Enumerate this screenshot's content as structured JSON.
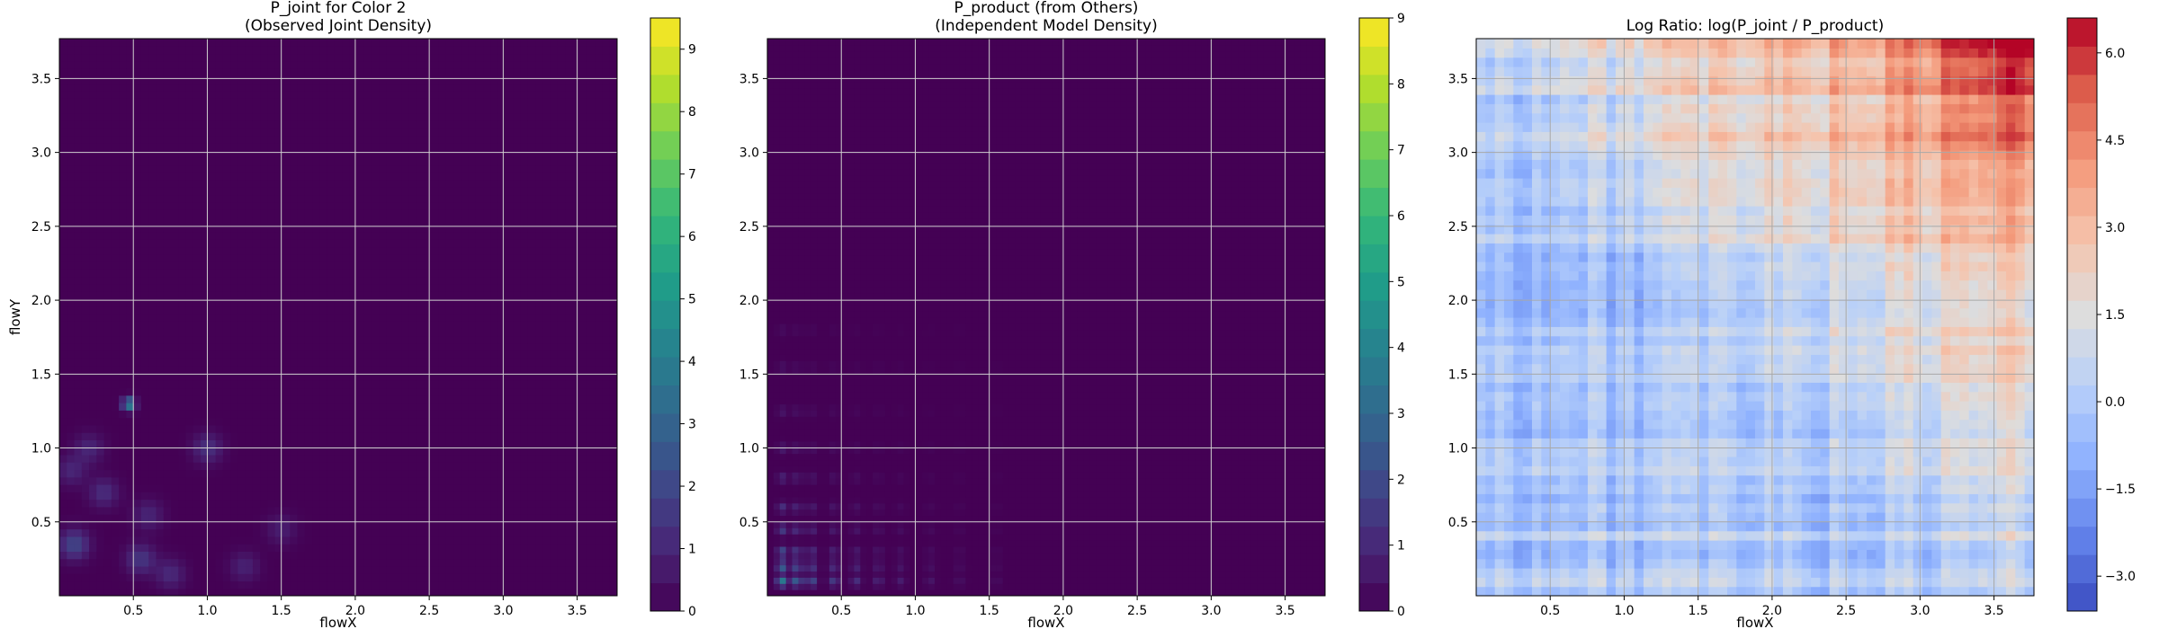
{
  "chart_data": [
    {
      "type": "heatmap",
      "title_line1": "P_joint for Color 2",
      "title_line2": "(Observed Joint Density)",
      "xlabel": "flowX",
      "ylabel": "flowY",
      "xlim": [
        0,
        3.77
      ],
      "ylim": [
        0,
        3.77
      ],
      "xticks": [
        "0.5",
        "1.0",
        "1.5",
        "2.0",
        "2.5",
        "3.0",
        "3.5"
      ],
      "yticks": [
        "0.5",
        "1.0",
        "1.5",
        "2.0",
        "2.5",
        "3.0",
        "3.5"
      ],
      "grid": true,
      "colormap": "viridis",
      "colorbar_range": [
        0,
        9.5
      ],
      "colorbar_ticks": [
        "0",
        "1",
        "2",
        "3",
        "4",
        "5",
        "6",
        "7",
        "8",
        "9"
      ],
      "background_color": "#440154",
      "peaks": [
        {
          "x": 0.47,
          "y": 1.3,
          "value": 4.5
        },
        {
          "x": 0.1,
          "y": 0.35,
          "value": 2.0
        },
        {
          "x": 0.3,
          "y": 0.7,
          "value": 1.2
        },
        {
          "x": 0.55,
          "y": 0.25,
          "value": 1.5
        },
        {
          "x": 1.0,
          "y": 1.0,
          "value": 1.3
        },
        {
          "x": 0.2,
          "y": 1.0,
          "value": 1.0
        },
        {
          "x": 0.75,
          "y": 0.15,
          "value": 1.1
        },
        {
          "x": 1.25,
          "y": 0.2,
          "value": 0.9
        },
        {
          "x": 0.08,
          "y": 0.85,
          "value": 1.0
        },
        {
          "x": 0.6,
          "y": 0.55,
          "value": 1.0
        },
        {
          "x": 1.5,
          "y": 0.45,
          "value": 0.8
        }
      ]
    },
    {
      "type": "heatmap",
      "title_line1": "P_product (from Others)",
      "title_line2": "(Independent Model Density)",
      "xlabel": "flowX",
      "ylabel": "",
      "xlim": [
        0,
        3.77
      ],
      "ylim": [
        0,
        3.77
      ],
      "xticks": [
        "0.5",
        "1.0",
        "1.5",
        "2.0",
        "2.5",
        "3.0",
        "3.5"
      ],
      "yticks": [
        "0.5",
        "1.0",
        "1.5",
        "2.0",
        "2.5",
        "3.0",
        "3.5"
      ],
      "grid": true,
      "colormap": "viridis",
      "colorbar_range": [
        0,
        9
      ],
      "colorbar_ticks": [
        "0",
        "1",
        "2",
        "3",
        "4",
        "5",
        "6",
        "7",
        "8",
        "9"
      ],
      "background_color": "#440154",
      "x_marginal_peaks": [
        0.1,
        0.2,
        0.3,
        0.45,
        0.6,
        0.75,
        0.9,
        1.1,
        1.3,
        1.55
      ],
      "y_marginal_peaks": [
        0.1,
        0.2,
        0.3,
        0.45,
        0.6,
        0.8,
        1.0,
        1.25,
        1.55,
        1.8
      ],
      "max_value": 4.4
    },
    {
      "type": "heatmap",
      "title": "Log Ratio: log(P_joint / P_product)",
      "xlabel": "flowX",
      "ylabel": "",
      "xlim": [
        0,
        3.77
      ],
      "ylim": [
        0,
        3.77
      ],
      "xticks": [
        "0.5",
        "1.0",
        "1.5",
        "2.0",
        "2.5",
        "3.0",
        "3.5"
      ],
      "yticks": [
        "0.5",
        "1.0",
        "1.5",
        "2.0",
        "2.5",
        "3.0",
        "3.5"
      ],
      "grid": true,
      "colormap": "coolwarm",
      "colorbar_range": [
        -3.6,
        6.6
      ],
      "colorbar_ticks": [
        "−3.0",
        "−1.5",
        "0.0",
        "1.5",
        "3.0",
        "4.5",
        "6.0"
      ],
      "trend": "increases toward upper-right corner, peak about 6 near (3.7, 3.7); near 0 to slightly negative in lower-left"
    }
  ]
}
